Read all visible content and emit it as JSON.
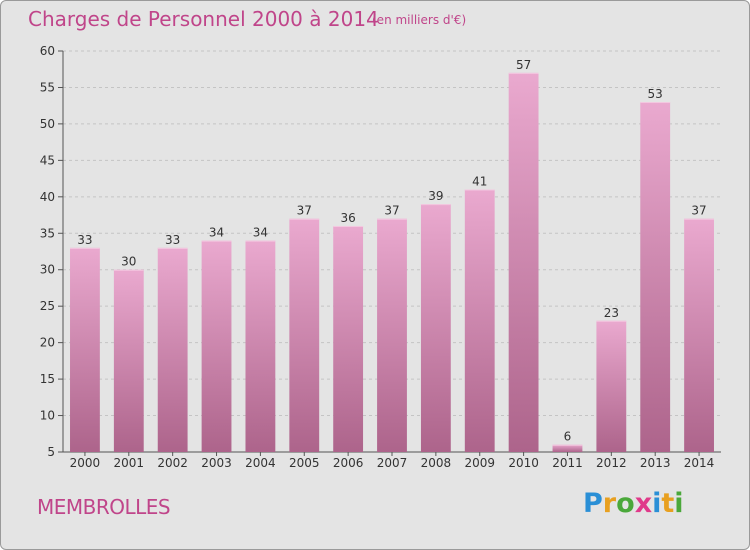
{
  "header": {
    "title": "Charges de Personnel 2000 à 2014",
    "subtitle": "(en milliers d'€)"
  },
  "footer": {
    "town": "MEMBROLLES",
    "logo_letters": [
      {
        "char": "P",
        "color": "#2a8fd6"
      },
      {
        "char": "r",
        "color": "#e8a020"
      },
      {
        "char": "o",
        "color": "#4aa83a"
      },
      {
        "char": "x",
        "color": "#e03a8a"
      },
      {
        "char": "i",
        "color": "#2a8fd6"
      },
      {
        "char": "t",
        "color": "#e8a020"
      },
      {
        "char": "i",
        "color": "#4aa83a"
      }
    ]
  },
  "colors": {
    "accent": "#c0458a",
    "bar_top": "#e9a6cc",
    "bar_bottom": "#b0678f",
    "background": "#e4e4e4"
  },
  "chart_data": {
    "type": "bar",
    "title": "Charges de Personnel 2000 à 2014",
    "subtitle": "(en milliers d'€)",
    "categories": [
      "2000",
      "2001",
      "2002",
      "2003",
      "2004",
      "2005",
      "2006",
      "2007",
      "2008",
      "2009",
      "2010",
      "2011",
      "2012",
      "2013",
      "2014"
    ],
    "values": [
      33,
      30,
      33,
      34,
      34,
      37,
      36,
      37,
      39,
      41,
      57,
      6,
      23,
      53,
      37
    ],
    "ylim": [
      5,
      60
    ],
    "yticks": [
      5,
      10,
      15,
      20,
      25,
      30,
      35,
      40,
      45,
      50,
      55,
      60
    ],
    "grid": true,
    "legend": "none"
  }
}
